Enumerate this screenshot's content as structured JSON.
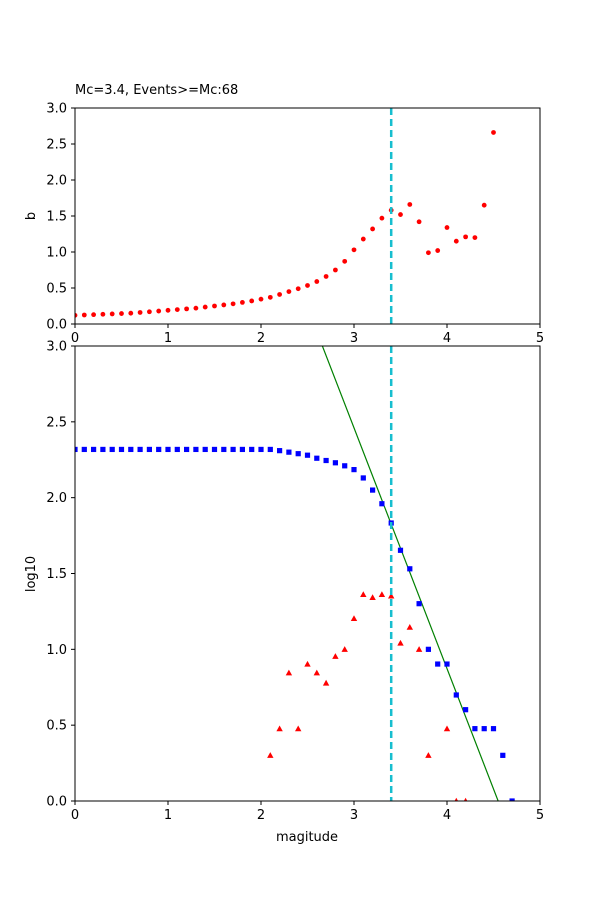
{
  "chart_data": [
    {
      "type": "scatter",
      "title": "Mc=3.4, Events>=Mc:68",
      "xlabel": "",
      "ylabel": "b",
      "xlim": [
        0,
        5
      ],
      "ylim": [
        0,
        3
      ],
      "xticks": [
        "0",
        "1",
        "2",
        "3",
        "4",
        "5"
      ],
      "yticks": [
        "0.0",
        "0.5",
        "1.0",
        "1.5",
        "2.0",
        "2.5",
        "3.0"
      ],
      "mc_line": {
        "x": 3.4,
        "color": "#17becf",
        "style": "dashed"
      },
      "series": [
        {
          "marker": "circle",
          "color": "#ff0000",
          "x": [
            0.0,
            0.1,
            0.2,
            0.3,
            0.4,
            0.5,
            0.6,
            0.7,
            0.8,
            0.9,
            1.0,
            1.1,
            1.2,
            1.3,
            1.4,
            1.5,
            1.6,
            1.7,
            1.8,
            1.9,
            2.0,
            2.1,
            2.2,
            2.3,
            2.4,
            2.5,
            2.6,
            2.7,
            2.8,
            2.9,
            3.0,
            3.1,
            3.2,
            3.3,
            3.4,
            3.5,
            3.6,
            3.7,
            3.8,
            3.9,
            4.0,
            4.1,
            4.2,
            4.3,
            4.4,
            4.5
          ],
          "y": [
            0.12,
            0.125,
            0.13,
            0.135,
            0.14,
            0.145,
            0.15,
            0.16,
            0.17,
            0.18,
            0.19,
            0.2,
            0.21,
            0.22,
            0.235,
            0.25,
            0.265,
            0.28,
            0.3,
            0.32,
            0.345,
            0.37,
            0.41,
            0.45,
            0.49,
            0.535,
            0.59,
            0.66,
            0.75,
            0.87,
            1.03,
            1.18,
            1.32,
            1.47,
            1.58,
            1.52,
            1.66,
            1.42,
            0.99,
            1.02,
            1.34,
            1.15,
            1.21,
            1.2,
            1.65,
            2.66
          ]
        }
      ]
    },
    {
      "type": "scatter",
      "title": "",
      "xlabel": "magitude",
      "ylabel": "log10",
      "xlim": [
        0,
        5
      ],
      "ylim": [
        0,
        3
      ],
      "xticks": [
        "0",
        "1",
        "2",
        "3",
        "4",
        "5"
      ],
      "yticks": [
        "0.0",
        "0.5",
        "1.0",
        "1.5",
        "2.0",
        "2.5",
        "3.0"
      ],
      "mc_line": {
        "x": 3.4,
        "color": "#17becf",
        "style": "dashed"
      },
      "fit_line": {
        "color": "#008000",
        "points": [
          [
            2.66,
            3.0
          ],
          [
            4.55,
            0.0
          ]
        ]
      },
      "series": [
        {
          "marker": "square",
          "color": "#0000ff",
          "x": [
            0.0,
            0.1,
            0.2,
            0.3,
            0.4,
            0.5,
            0.6,
            0.7,
            0.8,
            0.9,
            1.0,
            1.1,
            1.2,
            1.3,
            1.4,
            1.5,
            1.6,
            1.7,
            1.8,
            1.9,
            2.0,
            2.1,
            2.2,
            2.3,
            2.4,
            2.5,
            2.6,
            2.7,
            2.8,
            2.9,
            3.0,
            3.1,
            3.2,
            3.3,
            3.4,
            3.5,
            3.6,
            3.7,
            3.8,
            3.9,
            4.0,
            4.1,
            4.2,
            4.3,
            4.4,
            4.5,
            4.6,
            4.7
          ],
          "y": [
            2.318,
            2.318,
            2.318,
            2.318,
            2.318,
            2.318,
            2.318,
            2.318,
            2.318,
            2.318,
            2.318,
            2.318,
            2.318,
            2.318,
            2.318,
            2.318,
            2.318,
            2.318,
            2.318,
            2.318,
            2.318,
            2.318,
            2.31,
            2.3,
            2.29,
            2.28,
            2.26,
            2.245,
            2.23,
            2.21,
            2.185,
            2.13,
            2.05,
            1.96,
            1.833,
            1.653,
            1.531,
            1.301,
            1.0,
            0.903,
            0.903,
            0.699,
            0.602,
            0.477,
            0.477,
            0.477,
            0.301,
            0.0
          ]
        },
        {
          "marker": "triangle",
          "color": "#ff0000",
          "x": [
            2.1,
            2.2,
            2.3,
            2.4,
            2.5,
            2.6,
            2.7,
            2.8,
            2.9,
            3.0,
            3.1,
            3.2,
            3.3,
            3.4,
            3.5,
            3.6,
            3.7,
            3.8,
            4.0,
            4.1,
            4.2
          ],
          "y": [
            0.301,
            0.477,
            0.845,
            0.477,
            0.903,
            0.845,
            0.778,
            0.954,
            1.0,
            1.204,
            1.362,
            1.342,
            1.362,
            1.352,
            1.041,
            1.146,
            1.0,
            0.301,
            0.477,
            0.0,
            0.0
          ]
        }
      ]
    }
  ]
}
